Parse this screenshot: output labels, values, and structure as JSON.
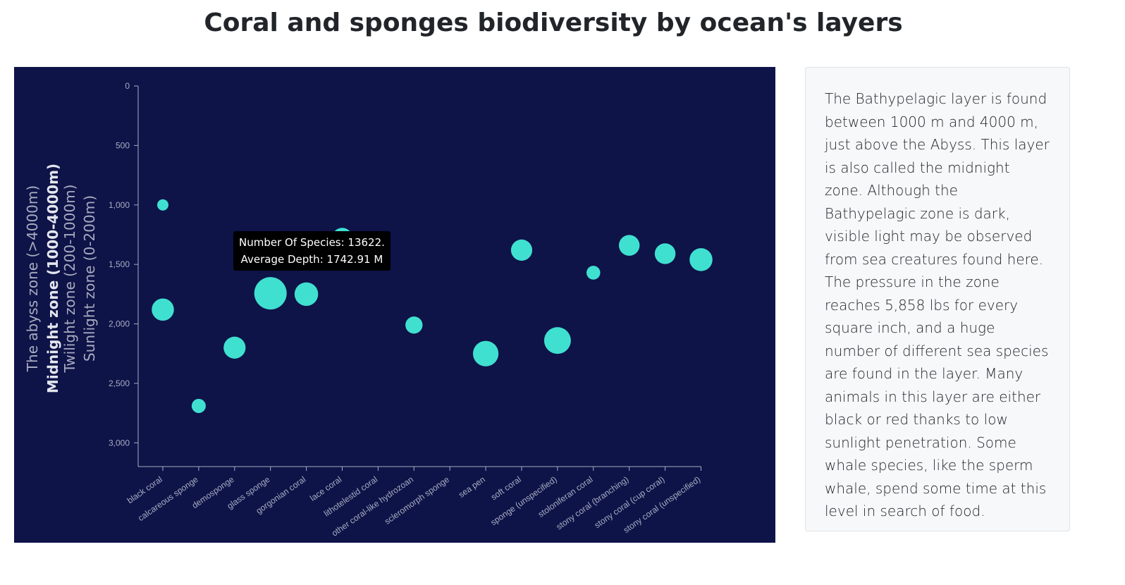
{
  "page": {
    "title": "Coral and sponges biodiversity by ocean's layers"
  },
  "info": {
    "text": "The Bathypelagic layer is found between 1000 m and 4000 m, just above the Abyss. This layer is also called the midnight zone. Although the Bathypelagic zone is dark, visible light may be observed from sea creatures found here. The pressure in the zone reaches 5,858 lbs for every square inch, and a huge number of different sea species are found in the layer. Many animals in this layer are either black or red thanks to low sunlight penetration. Some whale species, like the sperm whale, spend some time at this level in search of food."
  },
  "tooltip": {
    "species_line": "Number Of Species: 13622.",
    "depth_line": "Average Depth: 1742.91 M"
  },
  "colors": {
    "background": "#0e1348",
    "bubble": "#40e0d0",
    "axis": "#a9adc2",
    "zone_label": "#c3c6d4"
  },
  "chart_data": {
    "type": "scatter",
    "categories": [
      "black coral",
      "calcareous sponge",
      "demosponge",
      "glass sponge",
      "gorgonian coral",
      "lace coral",
      "lithotelestid coral",
      "other coral-like hydrozoan",
      "scleromorph sponge",
      "sea pen",
      "soft coral",
      "sponge (unspecified)",
      "stoloniferan coral",
      "stony coral (branching)",
      "stony coral (cup coral)",
      "stony coral (unspecified)"
    ],
    "y_ticks": [
      "0",
      "500",
      "1,000",
      "1,500",
      "2,000",
      "2,500",
      "3,000"
    ],
    "ylim": [
      0,
      3200
    ],
    "y_inverted": true,
    "points": [
      {
        "category": "black coral",
        "depth": 1000,
        "size": 0.12
      },
      {
        "category": "black coral",
        "depth": 1880,
        "size": 0.47
      },
      {
        "category": "calcareous sponge",
        "depth": 2690,
        "size": 0.19
      },
      {
        "category": "demosponge",
        "depth": 2200,
        "size": 0.46
      },
      {
        "category": "glass sponge",
        "depth": 1742.91,
        "size": 1.0,
        "species": 13622
      },
      {
        "category": "gorgonian coral",
        "depth": 1750,
        "size": 0.53
      },
      {
        "category": "lace coral",
        "depth": 1280,
        "size": 0.41
      },
      {
        "category": "other coral-like hydrozoan",
        "depth": 2010,
        "size": 0.28
      },
      {
        "category": "sea pen",
        "depth": 2250,
        "size": 0.62
      },
      {
        "category": "soft coral",
        "depth": 1380,
        "size": 0.43
      },
      {
        "category": "sponge (unspecified)",
        "depth": 2140,
        "size": 0.68
      },
      {
        "category": "stoloniferan coral",
        "depth": 1570,
        "size": 0.18
      },
      {
        "category": "stony coral (branching)",
        "depth": 1340,
        "size": 0.41
      },
      {
        "category": "stony coral (cup coral)",
        "depth": 1410,
        "size": 0.41
      },
      {
        "category": "stony coral (unspecified)",
        "depth": 1460,
        "size": 0.5
      }
    ],
    "zone_labels": [
      {
        "text": "The abyss zone (>4000m)",
        "active": false
      },
      {
        "text": "Midnight zone (1000-4000m)",
        "active": true
      },
      {
        "text": "Twilight zone (200-1000m)",
        "active": false
      },
      {
        "text": "Sunlight zone (0-200m)",
        "active": false
      }
    ],
    "grid": false
  }
}
